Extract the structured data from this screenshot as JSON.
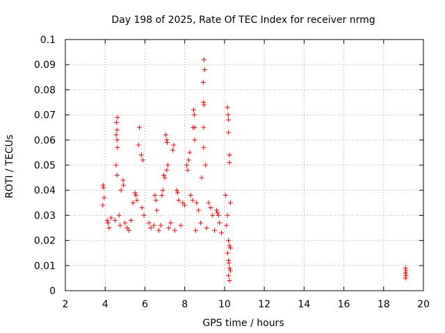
{
  "chart_data": {
    "type": "scatter",
    "title": "Day 198 of 2025, Rate Of TEC Index for receiver nrmg",
    "xlabel": "GPS time / hours",
    "ylabel": "ROTI / TECUs",
    "xlim": [
      2,
      20
    ],
    "ylim": [
      0,
      0.1
    ],
    "xticks": [
      "2",
      "4",
      "6",
      "8",
      "10",
      "12",
      "14",
      "16",
      "18",
      "20"
    ],
    "yticks": [
      "0",
      "0.01",
      "0.02",
      "0.03",
      "0.04",
      "0.05",
      "0.06",
      "0.07",
      "0.08",
      "0.09",
      "0.1"
    ],
    "grid": true,
    "marker": "+",
    "colors": {
      "points": "#ff0000",
      "grid": "#a0a0a0",
      "axis": "#000000"
    },
    "series": [
      {
        "name": "ROTI",
        "points": [
          [
            8.97,
            0.092
          ],
          [
            9.0,
            0.088
          ],
          [
            8.93,
            0.083
          ],
          [
            8.95,
            0.075
          ],
          [
            8.97,
            0.074
          ],
          [
            8.45,
            0.072
          ],
          [
            8.48,
            0.07
          ],
          [
            8.42,
            0.065
          ],
          [
            8.5,
            0.065
          ],
          [
            8.95,
            0.065
          ],
          [
            8.5,
            0.06
          ],
          [
            8.95,
            0.057
          ],
          [
            10.15,
            0.073
          ],
          [
            10.18,
            0.07
          ],
          [
            10.2,
            0.068
          ],
          [
            10.2,
            0.063
          ],
          [
            10.25,
            0.054
          ],
          [
            10.25,
            0.051
          ],
          [
            4.62,
            0.069
          ],
          [
            4.58,
            0.067
          ],
          [
            4.6,
            0.064
          ],
          [
            4.55,
            0.062
          ],
          [
            4.6,
            0.06
          ],
          [
            4.62,
            0.057
          ],
          [
            4.55,
            0.05
          ],
          [
            4.6,
            0.046
          ],
          [
            5.72,
            0.065
          ],
          [
            5.68,
            0.058
          ],
          [
            5.82,
            0.054
          ],
          [
            5.9,
            0.052
          ],
          [
            7.05,
            0.062
          ],
          [
            7.1,
            0.06
          ],
          [
            7.12,
            0.059
          ],
          [
            7.45,
            0.058
          ],
          [
            7.4,
            0.056
          ],
          [
            7.15,
            0.05
          ],
          [
            7.1,
            0.048
          ],
          [
            6.95,
            0.046
          ],
          [
            7.0,
            0.045
          ],
          [
            8.1,
            0.05
          ],
          [
            8.15,
            0.048
          ],
          [
            8.25,
            0.055
          ],
          [
            8.2,
            0.052
          ],
          [
            9.05,
            0.05
          ],
          [
            8.85,
            0.045
          ],
          [
            4.9,
            0.044
          ],
          [
            4.92,
            0.042
          ],
          [
            4.8,
            0.04
          ],
          [
            3.9,
            0.042
          ],
          [
            3.92,
            0.041
          ],
          [
            3.95,
            0.037
          ],
          [
            3.88,
            0.034
          ],
          [
            5.5,
            0.039
          ],
          [
            5.55,
            0.038
          ],
          [
            5.6,
            0.036
          ],
          [
            5.4,
            0.035
          ],
          [
            5.85,
            0.033
          ],
          [
            5.95,
            0.03
          ],
          [
            6.5,
            0.038
          ],
          [
            6.55,
            0.036
          ],
          [
            6.6,
            0.032
          ],
          [
            6.9,
            0.04
          ],
          [
            6.85,
            0.038
          ],
          [
            7.6,
            0.04
          ],
          [
            7.65,
            0.039
          ],
          [
            7.7,
            0.036
          ],
          [
            7.9,
            0.035
          ],
          [
            8.0,
            0.034
          ],
          [
            8.3,
            0.038
          ],
          [
            8.4,
            0.036
          ],
          [
            8.6,
            0.035
          ],
          [
            8.7,
            0.032
          ],
          [
            9.2,
            0.035
          ],
          [
            9.3,
            0.033
          ],
          [
            9.4,
            0.03
          ],
          [
            9.6,
            0.032
          ],
          [
            9.65,
            0.031
          ],
          [
            9.7,
            0.03
          ],
          [
            10.05,
            0.038
          ],
          [
            10.3,
            0.035
          ],
          [
            10.15,
            0.03
          ],
          [
            4.1,
            0.028
          ],
          [
            4.15,
            0.027
          ],
          [
            4.2,
            0.025
          ],
          [
            4.3,
            0.029
          ],
          [
            4.5,
            0.028
          ],
          [
            4.7,
            0.03
          ],
          [
            4.75,
            0.026
          ],
          [
            5.0,
            0.027
          ],
          [
            5.1,
            0.025
          ],
          [
            5.3,
            0.028
          ],
          [
            5.2,
            0.024
          ],
          [
            6.2,
            0.027
          ],
          [
            6.3,
            0.025
          ],
          [
            6.45,
            0.026
          ],
          [
            6.7,
            0.024
          ],
          [
            6.8,
            0.026
          ],
          [
            7.2,
            0.025
          ],
          [
            7.3,
            0.027
          ],
          [
            7.5,
            0.024
          ],
          [
            7.8,
            0.026
          ],
          [
            8.55,
            0.024
          ],
          [
            8.8,
            0.027
          ],
          [
            9.1,
            0.025
          ],
          [
            9.5,
            0.024
          ],
          [
            9.75,
            0.027
          ],
          [
            9.85,
            0.023
          ],
          [
            10.1,
            0.026
          ],
          [
            10.2,
            0.02
          ],
          [
            10.25,
            0.018
          ],
          [
            10.3,
            0.017
          ],
          [
            10.15,
            0.015
          ],
          [
            10.2,
            0.012
          ],
          [
            10.22,
            0.011
          ],
          [
            10.25,
            0.009
          ],
          [
            10.3,
            0.008
          ],
          [
            10.2,
            0.006
          ],
          [
            10.25,
            0.004
          ],
          [
            19.1,
            0.009
          ],
          [
            19.12,
            0.008
          ],
          [
            19.1,
            0.007
          ],
          [
            19.13,
            0.006
          ],
          [
            19.1,
            0.005
          ]
        ]
      }
    ]
  }
}
